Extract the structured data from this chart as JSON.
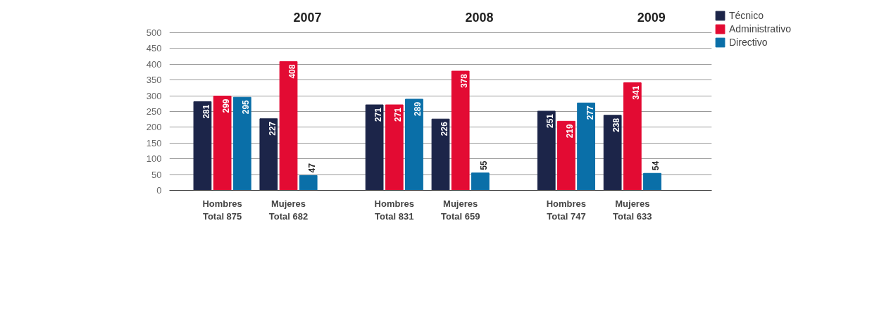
{
  "chart_data": {
    "type": "bar",
    "categories": [
      "Hombres\nTotal 875",
      "Mujeres\nTotal 682",
      "Hombres\nTotal 831",
      "Mujeres\nTotal 659",
      "Hombres\nTotal 747",
      "Mujeres\nTotal 633"
    ],
    "series": [
      {
        "name": "Técnico",
        "color": "#1c2549",
        "values": [
          281,
          227,
          271,
          226,
          251,
          238
        ]
      },
      {
        "name": "Administrativo",
        "color": "#e30b33",
        "values": [
          299,
          408,
          271,
          378,
          219,
          341
        ]
      },
      {
        "name": "Directivo",
        "color": "#0a6fa8",
        "values": [
          295,
          47,
          289,
          55,
          277,
          54
        ]
      }
    ],
    "annotations": [
      "2007",
      "2008",
      "2009"
    ],
    "ylim": [
      0,
      500
    ],
    "yticks": [
      0,
      50,
      100,
      150,
      200,
      250,
      300,
      350,
      400,
      450,
      500
    ],
    "grid": "y",
    "legend": "right",
    "data_labels": true
  }
}
